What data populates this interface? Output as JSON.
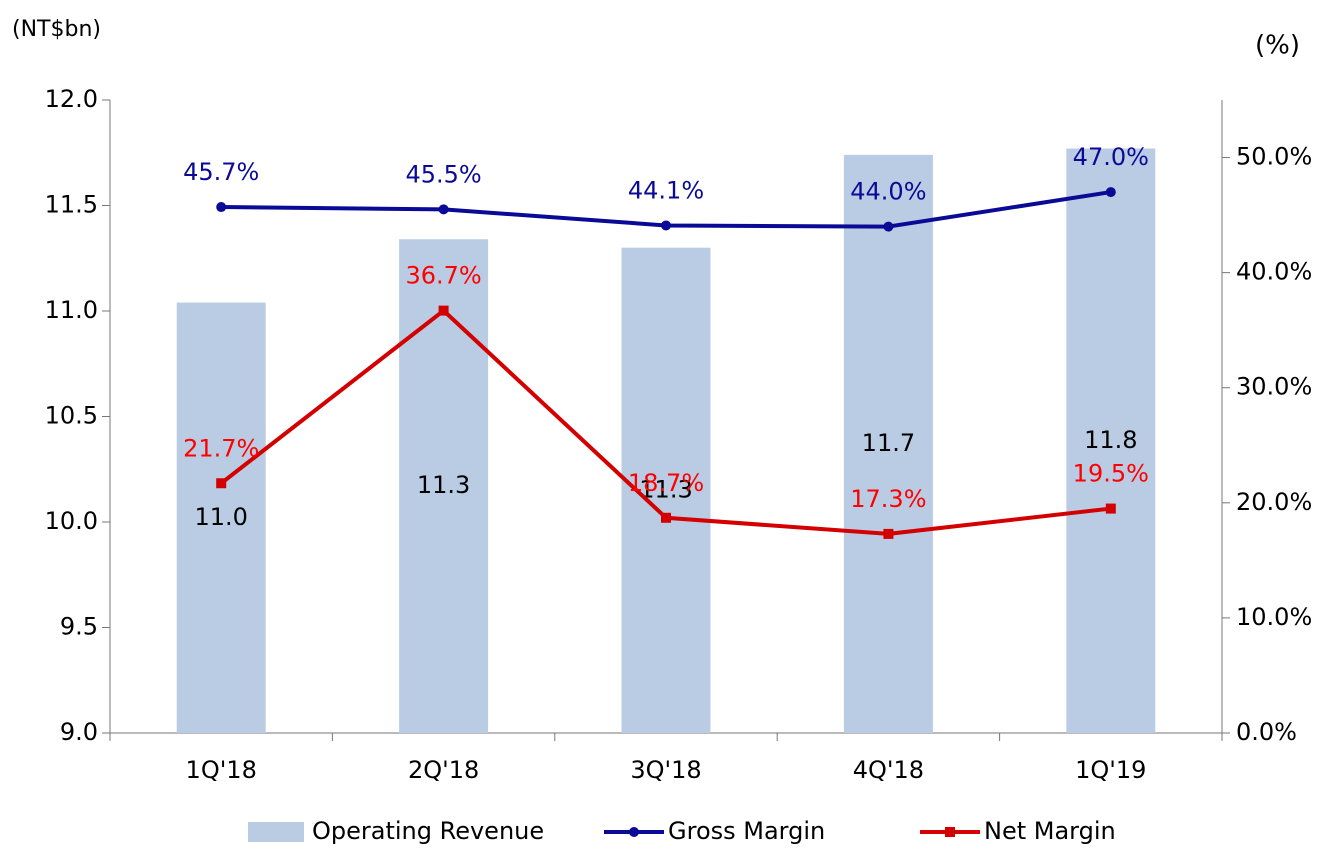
{
  "chart_data": {
    "type": "bar_line",
    "y_label": "(NT$bn)",
    "y2_label": "(%)",
    "categories": [
      "1Q'18",
      "2Q'18",
      "3Q'18",
      "4Q'18",
      "1Q'19"
    ],
    "series": [
      {
        "name": "Operating Revenue",
        "type": "bar",
        "color": "#b9cce4",
        "values": [
          11.04,
          11.34,
          11.3,
          11.74,
          11.77
        ],
        "value_labels": [
          "11.0",
          "11.3",
          "11.3",
          "11.7",
          "11.8"
        ],
        "label_color": "#000000"
      },
      {
        "name": "Gross Margin",
        "type": "line",
        "axis": "y2",
        "color": "#0a0a96",
        "marker": "circle",
        "values": [
          45.7,
          45.5,
          44.1,
          44.0,
          47.0
        ],
        "value_labels": [
          "45.7%",
          "45.5%",
          "44.1%",
          "44.0%",
          "47.0%"
        ],
        "label_color": "#0a0a96"
      },
      {
        "name": "Net Margin",
        "type": "line",
        "axis": "y2",
        "color": "#d40000",
        "marker": "square",
        "values": [
          21.7,
          36.7,
          18.7,
          17.3,
          19.5
        ],
        "value_labels": [
          "21.7%",
          "36.7%",
          "18.7%",
          "17.3%",
          "19.5%"
        ],
        "label_color": "#ff0000"
      }
    ],
    "ylim": [
      9,
      12
    ],
    "yticks": [
      {
        "value": 9,
        "label": "9.0"
      },
      9.5,
      {
        "value": 10,
        "label": "10.0"
      },
      10.5,
      {
        "value": 11,
        "label": "11.0"
      },
      11.5,
      {
        "value": 12,
        "label": "12.0"
      }
    ],
    "y2lim": [
      0,
      55
    ],
    "y2ticks": [
      {
        "value": 0,
        "label": "0.0%"
      },
      {
        "value": 10,
        "label": "10.0%"
      },
      {
        "value": 20,
        "label": "20.0%"
      },
      {
        "value": 30,
        "label": "30.0%"
      },
      {
        "value": 40,
        "label": "40.0%"
      },
      {
        "value": 50,
        "label": "50.0%"
      }
    ],
    "legend": "bottom"
  }
}
